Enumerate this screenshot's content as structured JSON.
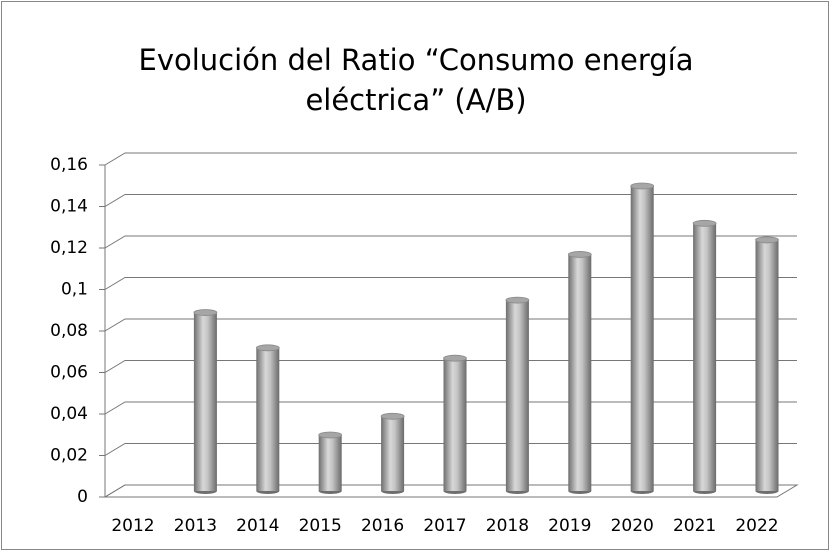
{
  "chart_data": {
    "type": "bar",
    "title": "Evolución del Ratio “Consumo energía eléctrica” (A/B)",
    "categories": [
      "2012",
      "2013",
      "2014",
      "2015",
      "2016",
      "2017",
      "2018",
      "2019",
      "2020",
      "2021",
      "2022"
    ],
    "values": [
      null,
      0.086,
      0.069,
      0.027,
      0.036,
      0.064,
      0.092,
      0.114,
      0.147,
      0.129,
      0.121
    ],
    "color": "#a6a6a6",
    "ylim": [
      0,
      0.16
    ],
    "yticks": [
      0,
      {
        "value": 0.02,
        "label": "0,02"
      },
      {
        "value": 0.04,
        "label": "0,04"
      },
      {
        "value": 0.06,
        "label": "0,06"
      },
      {
        "value": 0.08,
        "label": "0,08"
      },
      {
        "value": 0.1,
        "label": "0,1"
      },
      {
        "value": 0.12,
        "label": "0,12"
      },
      {
        "value": 0.14,
        "label": "0,14"
      },
      {
        "value": 0.16,
        "label": "0,16"
      }
    ],
    "grid": true
  }
}
